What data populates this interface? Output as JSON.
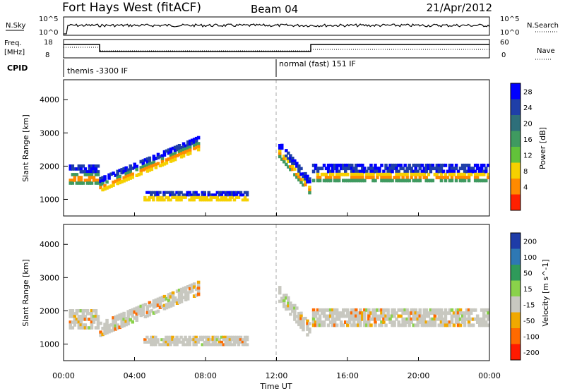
{
  "header": {
    "title": "Fort Hays West (fitACF)",
    "beam": "Beam 04",
    "date": "21/Apr/2012"
  },
  "sky_panel": {
    "left_label": "N.Sky",
    "right_label": "N.Search",
    "left_ticks": [
      "10^5",
      "10^0"
    ],
    "right_ticks": [
      "10^5",
      "10^0"
    ]
  },
  "freq_panel": {
    "left_label_line1": "Freq.",
    "left_label_line2": "[MHz]",
    "right_label": "Nave",
    "left_ticks": [
      "18",
      "8"
    ],
    "right_ticks": [
      "60",
      "0"
    ]
  },
  "cpid_panel": {
    "label": "CPID",
    "modes": [
      "themis -3300 IF",
      "normal (fast) 151 IF"
    ]
  },
  "time_axis": {
    "label": "Time UT",
    "ticks": [
      "00:00",
      "04:00",
      "08:00",
      "12:00",
      "16:00",
      "20:00",
      "00:00"
    ]
  },
  "chart_data": [
    {
      "type": "heatmap",
      "title": "",
      "xlabel": "Time UT",
      "ylabel": "Slant Range [km]",
      "xlim_hours": [
        0,
        24
      ],
      "ylim_km": [
        500,
        4600
      ],
      "yticks": [
        "4000",
        "3000",
        "2000",
        "1000"
      ],
      "colorbar": {
        "label": "Power [dB]",
        "ticks": [
          "28",
          "24",
          "20",
          "16",
          "12",
          "8",
          "4"
        ],
        "colors": [
          "#0000ff",
          "#1f3fa8",
          "#2e6f7a",
          "#3f9a60",
          "#62c23a",
          "#f5d000",
          "#ff8a00",
          "#ff2000"
        ]
      },
      "echo_bands": [
        {
          "t_start": 0.3,
          "t_end": 1.9,
          "range_center_km": 1750,
          "range_width_km": 600
        },
        {
          "t_start": 2.0,
          "t_end": 7.6,
          "range_start_km": 1450,
          "range_end_km": 2700,
          "range_width_km": 450
        },
        {
          "t_start": 4.5,
          "t_end": 10.3,
          "range_center_km": 1100,
          "range_width_km": 300
        },
        {
          "t_start": 12.1,
          "t_end": 13.8,
          "range_start_km": 2500,
          "range_end_km": 1400,
          "range_width_km": 500
        },
        {
          "t_start": 14.0,
          "t_end": 23.9,
          "range_center_km": 1800,
          "range_width_km": 550
        }
      ]
    },
    {
      "type": "heatmap",
      "title": "",
      "xlabel": "Time UT",
      "ylabel": "Slant Range [km]",
      "xlim_hours": [
        0,
        24
      ],
      "ylim_km": [
        500,
        4600
      ],
      "yticks": [
        "4000",
        "3000",
        "2000",
        "1000"
      ],
      "colorbar": {
        "label": "Velocity [m s^-1]",
        "ticks": [
          "200",
          "100",
          "50",
          "15",
          "-15",
          "-50",
          "-100",
          "-200"
        ],
        "colors": [
          "#1e3ca8",
          "#2e78b4",
          "#2f9a5a",
          "#8ad24a",
          "#c8c8c0",
          "#f0a800",
          "#ff6a00",
          "#ff1a00"
        ]
      }
    }
  ]
}
